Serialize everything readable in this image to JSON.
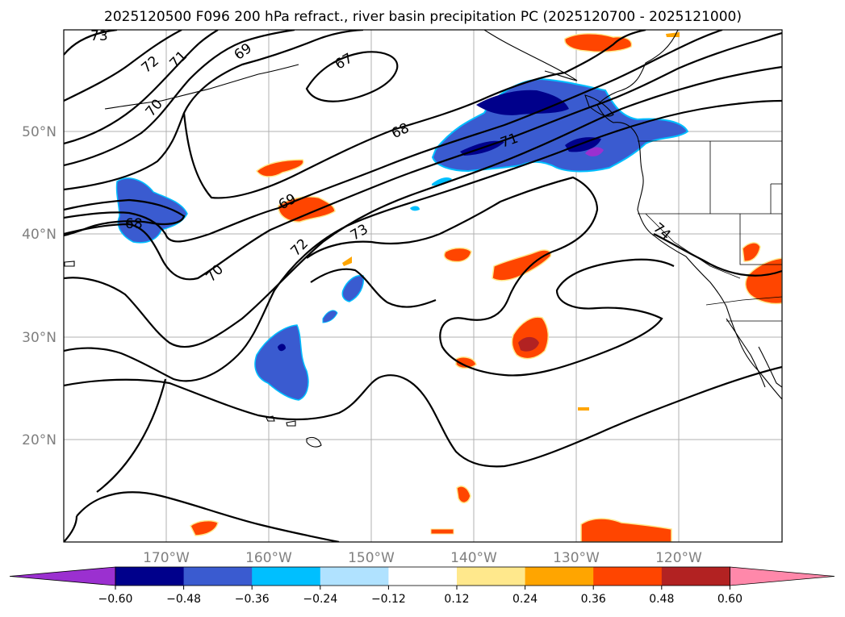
{
  "map": {
    "title": "2025120500 F096 200 hPa refract., river basin precipitation PC (2025120700 - 2025121000)",
    "lat_labels": [
      "50°N",
      "40°N",
      "30°N",
      "20°N"
    ],
    "lon_labels": [
      "170°W",
      "160°W",
      "150°W",
      "140°W",
      "130°W",
      "120°W"
    ],
    "contour_labels": [
      "73",
      "72",
      "71",
      "70",
      "69",
      "67",
      "68",
      "71",
      "68",
      "69",
      "70",
      "72",
      "73",
      "74"
    ],
    "colorbar": {
      "ticks": [
        "−0.60",
        "−0.48",
        "−0.36",
        "−0.24",
        "−0.12",
        "0.12",
        "0.24",
        "0.36",
        "0.48",
        "0.60"
      ],
      "colors": [
        "#9b30d0",
        "#00008b",
        "#3a5bd0",
        "#00bfff",
        "#b0e2ff",
        "#ffffff",
        "#ffe88c",
        "#ffa500",
        "#ff4500",
        "#b22222",
        "#ff88aa"
      ]
    }
  }
}
